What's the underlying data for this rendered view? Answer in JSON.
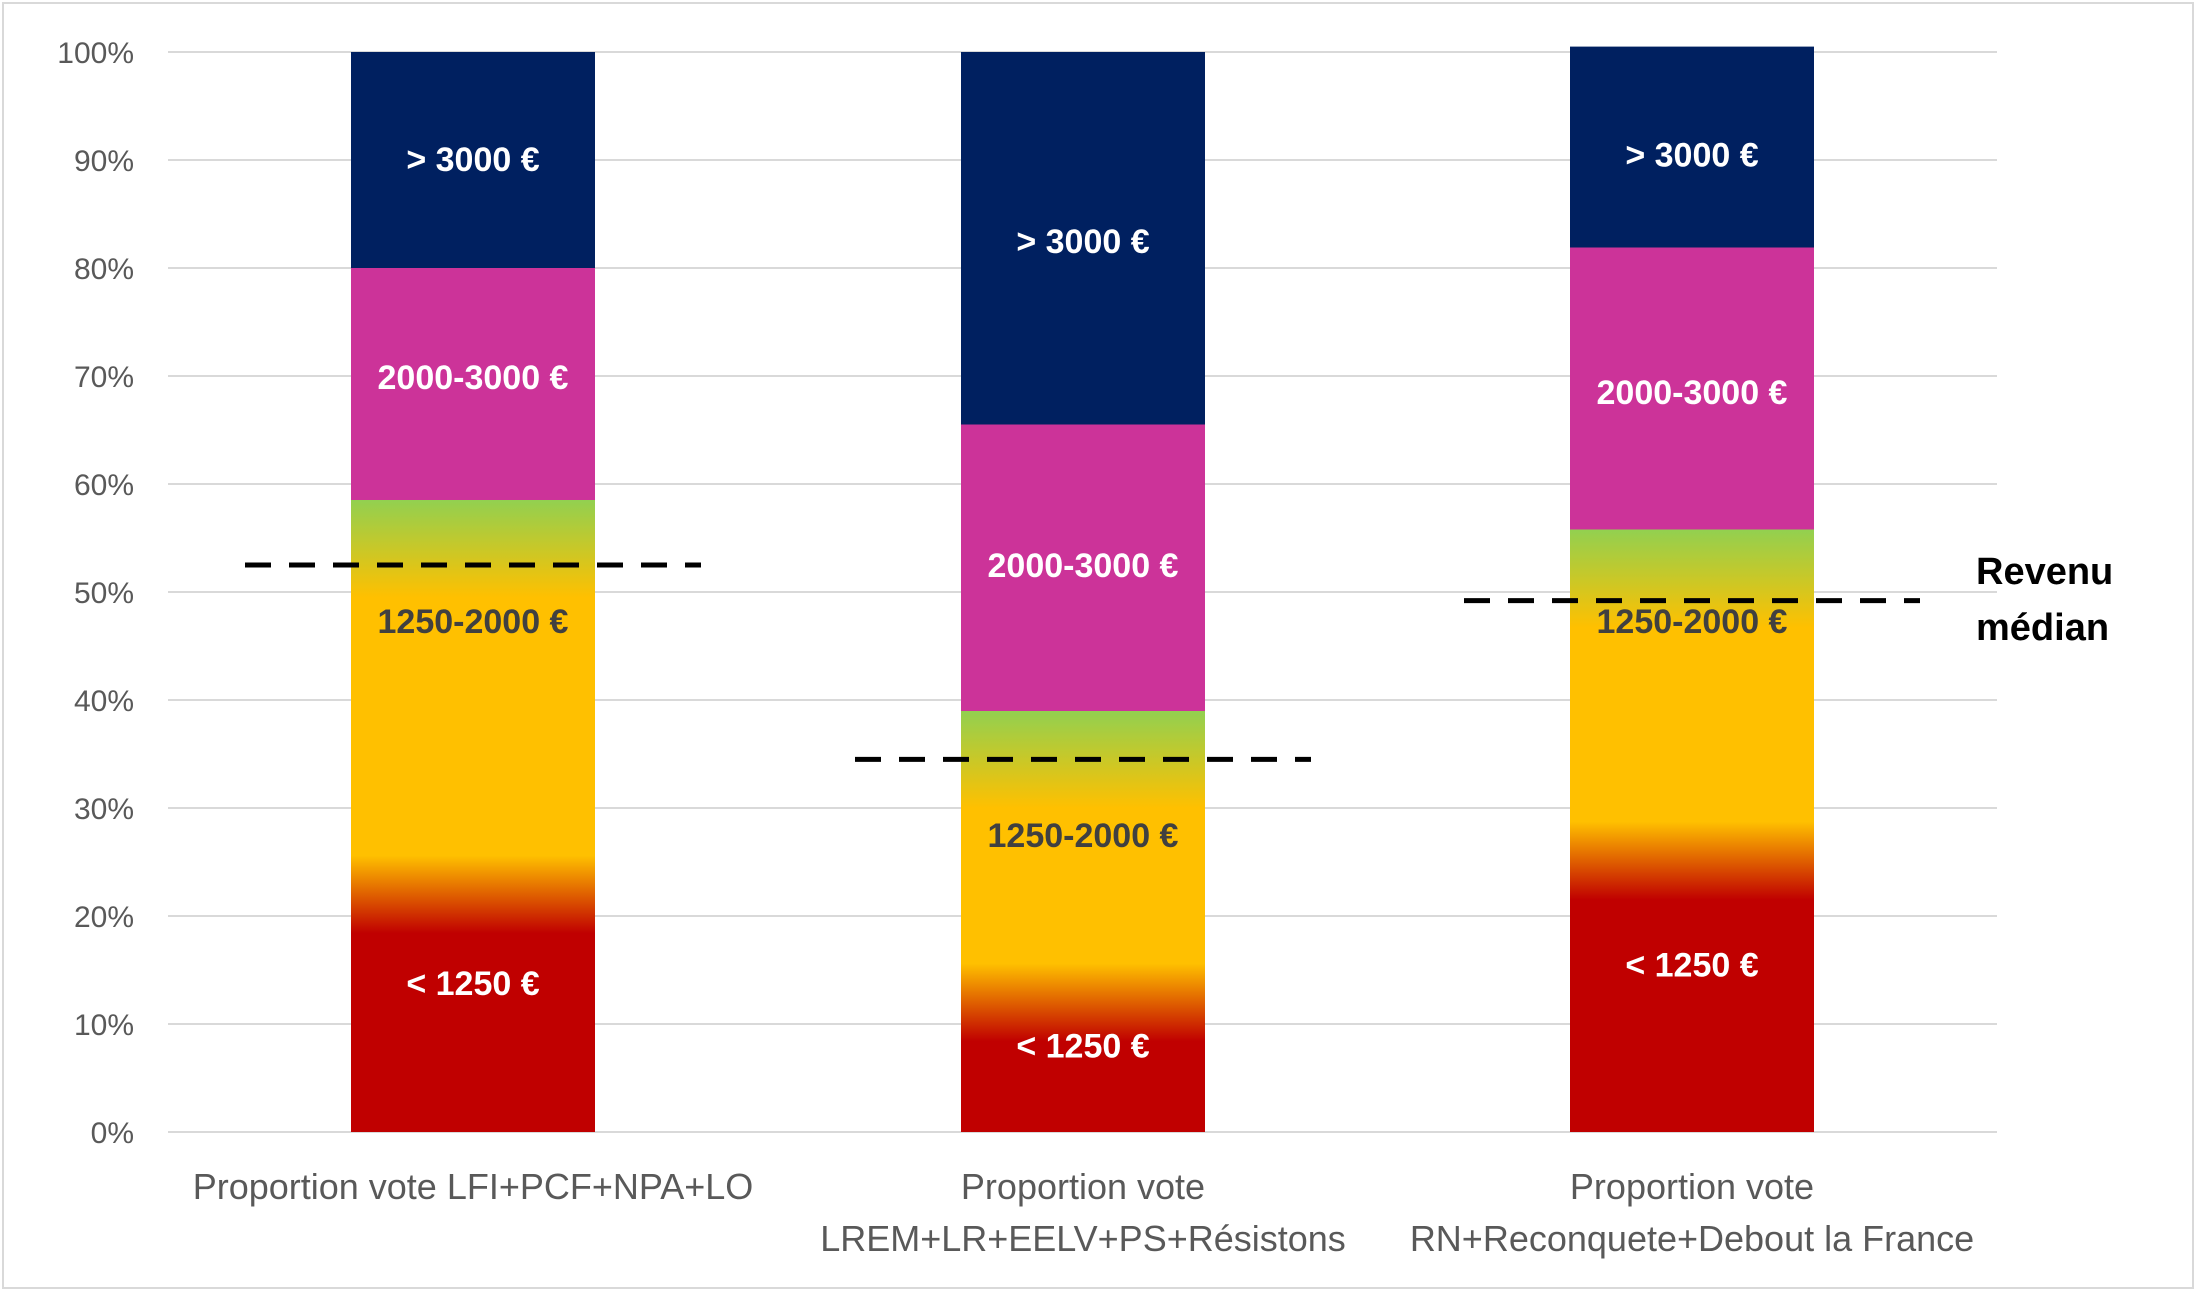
{
  "chart_data": {
    "type": "bar",
    "stacked": true,
    "ylim": [
      0,
      100
    ],
    "y_ticks": [
      "0%",
      "10%",
      "20%",
      "30%",
      "40%",
      "50%",
      "60%",
      "70%",
      "80%",
      "90%",
      "100%"
    ],
    "grid": true,
    "categories": [
      [
        "Proportion vote LFI+PCF+NPA+LO"
      ],
      [
        "Proportion vote",
        "LREM+LR+EELV+PS+Résistons"
      ],
      [
        "Proportion vote",
        "RN+Reconquete+Debout la France"
      ]
    ],
    "bands": [
      {
        "name": "< 1250 €",
        "label_color": "#ffffff",
        "colors": [
          "#c00000",
          "#ffc000"
        ],
        "values": [
          24,
          14,
          27
        ]
      },
      {
        "name": "1250-2000 €",
        "label_color": "#404040",
        "colors": [
          "#ffc000",
          "#92d050"
        ],
        "values": [
          34.5,
          25,
          28.5
        ]
      },
      {
        "name": "2000-3000 €",
        "label_color": "#ffffff",
        "colors": [
          "#cc3399"
        ],
        "values": [
          21.5,
          26.5,
          26
        ]
      },
      {
        "name": "> 3000 €",
        "label_color": "#ffffff",
        "colors": [
          "#002060"
        ],
        "values": [
          20,
          34.5,
          19
        ]
      }
    ],
    "band_transitions": [
      {
        "values": [
          24,
          14,
          27
        ],
        "spread": 4
      },
      {
        "values": [
          58.5,
          39,
          55.5
        ],
        "spread": 9
      }
    ],
    "label_positions": [
      [
        13.8,
        47.3,
        69.9,
        90.1
      ],
      [
        8,
        27.5,
        52.5,
        82.5
      ],
      [
        15.5,
        47.3,
        68.5,
        90.5
      ]
    ],
    "median": {
      "label_lines": [
        "Revenu",
        "médian"
      ],
      "values": [
        52.5,
        34.5,
        49.2
      ]
    }
  }
}
